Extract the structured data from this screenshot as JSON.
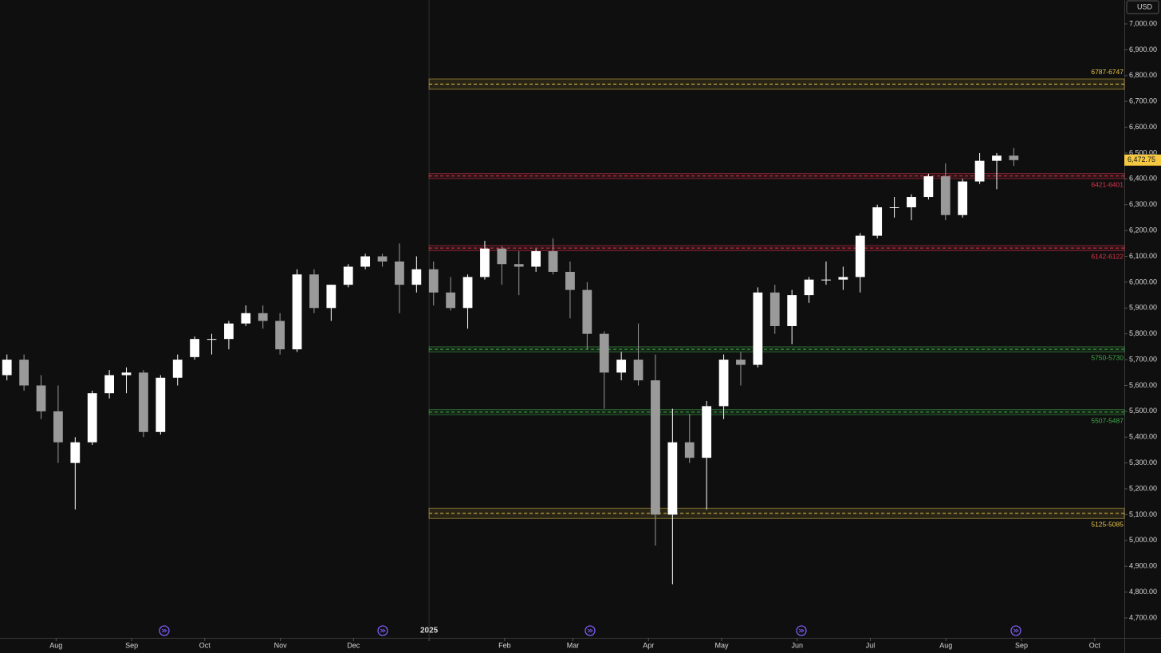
{
  "chart_data": {
    "type": "candlestick",
    "currency": "USD",
    "up_color": "#ffffff",
    "down_color": "#9a9a9a",
    "x": [
      "2024-07-08",
      "2024-07-15",
      "2024-07-22",
      "2024-07-29",
      "2024-08-05",
      "2024-08-12",
      "2024-08-19",
      "2024-08-26",
      "2024-09-02",
      "2024-09-09",
      "2024-09-16",
      "2024-09-23",
      "2024-09-30",
      "2024-10-07",
      "2024-10-14",
      "2024-10-21",
      "2024-10-28",
      "2024-11-04",
      "2024-11-11",
      "2024-11-18",
      "2024-11-25",
      "2024-12-02",
      "2024-12-09",
      "2024-12-16",
      "2024-12-23",
      "2024-12-30",
      "2025-01-06",
      "2025-01-13",
      "2025-01-20",
      "2025-01-27",
      "2025-02-03",
      "2025-02-10",
      "2025-02-17",
      "2025-02-24",
      "2025-03-03",
      "2025-03-10",
      "2025-03-17",
      "2025-03-24",
      "2025-03-31",
      "2025-04-07",
      "2025-04-14",
      "2025-04-21",
      "2025-04-28",
      "2025-05-05",
      "2025-05-12",
      "2025-05-19",
      "2025-05-26",
      "2025-06-02",
      "2025-06-09",
      "2025-06-16",
      "2025-06-23",
      "2025-06-30",
      "2025-07-07",
      "2025-07-14",
      "2025-07-21",
      "2025-07-28",
      "2025-08-04",
      "2025-08-11",
      "2025-08-18",
      "2025-08-25"
    ],
    "ohlc": [
      [
        5640,
        5720,
        5620,
        5700
      ],
      [
        5700,
        5720,
        5580,
        5600
      ],
      [
        5600,
        5640,
        5470,
        5500
      ],
      [
        5500,
        5600,
        5300,
        5380
      ],
      [
        5300,
        5400,
        5120,
        5380
      ],
      [
        5380,
        5580,
        5370,
        5570
      ],
      [
        5570,
        5660,
        5550,
        5640
      ],
      [
        5640,
        5670,
        5570,
        5650
      ],
      [
        5650,
        5660,
        5400,
        5420
      ],
      [
        5420,
        5640,
        5410,
        5630
      ],
      [
        5630,
        5720,
        5600,
        5700
      ],
      [
        5710,
        5790,
        5700,
        5780
      ],
      [
        5780,
        5800,
        5720,
        5780
      ],
      [
        5780,
        5850,
        5740,
        5840
      ],
      [
        5840,
        5910,
        5830,
        5880
      ],
      [
        5880,
        5910,
        5820,
        5850
      ],
      [
        5850,
        5880,
        5720,
        5740
      ],
      [
        5740,
        6050,
        5730,
        6030
      ],
      [
        6030,
        6050,
        5880,
        5900
      ],
      [
        5900,
        5990,
        5850,
        5990
      ],
      [
        5990,
        6070,
        5980,
        6060
      ],
      [
        6060,
        6110,
        6050,
        6100
      ],
      [
        6100,
        6110,
        6060,
        6080
      ],
      [
        6080,
        6150,
        5880,
        5990
      ],
      [
        5990,
        6100,
        5960,
        6050
      ],
      [
        6050,
        6080,
        5910,
        5960
      ],
      [
        5960,
        6020,
        5890,
        5900
      ],
      [
        5900,
        6030,
        5820,
        6020
      ],
      [
        6020,
        6160,
        6010,
        6130
      ],
      [
        6130,
        6140,
        5990,
        6070
      ],
      [
        6070,
        6120,
        5950,
        6060
      ],
      [
        6060,
        6130,
        6040,
        6120
      ],
      [
        6120,
        6170,
        6030,
        6040
      ],
      [
        6040,
        6080,
        5860,
        5970
      ],
      [
        5970,
        6000,
        5740,
        5800
      ],
      [
        5800,
        5810,
        5510,
        5650
      ],
      [
        5650,
        5730,
        5620,
        5700
      ],
      [
        5700,
        5840,
        5600,
        5620
      ],
      [
        5620,
        5720,
        4980,
        5100
      ],
      [
        5100,
        5510,
        4830,
        5380
      ],
      [
        5380,
        5490,
        5300,
        5320
      ],
      [
        5320,
        5540,
        5120,
        5520
      ],
      [
        5520,
        5720,
        5470,
        5700
      ],
      [
        5700,
        5730,
        5600,
        5680
      ],
      [
        5680,
        5980,
        5670,
        5960
      ],
      [
        5960,
        5990,
        5800,
        5830
      ],
      [
        5830,
        5970,
        5760,
        5950
      ],
      [
        5950,
        6020,
        5920,
        6010
      ],
      [
        6010,
        6080,
        5990,
        6010
      ],
      [
        6010,
        6060,
        5970,
        6020
      ],
      [
        6020,
        6190,
        5960,
        6180
      ],
      [
        6180,
        6300,
        6170,
        6290
      ],
      [
        6290,
        6330,
        6250,
        6290
      ],
      [
        6290,
        6340,
        6240,
        6330
      ],
      [
        6330,
        6420,
        6320,
        6410
      ],
      [
        6410,
        6460,
        6240,
        6260
      ],
      [
        6260,
        6400,
        6250,
        6390
      ],
      [
        6390,
        6500,
        6380,
        6470
      ],
      [
        6470,
        6500,
        6360,
        6490
      ],
      [
        6490,
        6520,
        6450,
        6472.75
      ]
    ],
    "last_price": {
      "value": 6472.75,
      "label": "6,472.75"
    },
    "zones": [
      {
        "label": "6787-6747",
        "high": 6787,
        "low": 6747,
        "color": "#e6c44a"
      },
      {
        "label": "6421-6401",
        "high": 6421,
        "low": 6401,
        "color": "#e0334a"
      },
      {
        "label": "6142-6122",
        "high": 6142,
        "low": 6122,
        "color": "#e0334a"
      },
      {
        "label": "5750-5730",
        "high": 5750,
        "low": 5730,
        "color": "#3fae4a"
      },
      {
        "label": "5507-5487",
        "high": 5507,
        "low": 5487,
        "color": "#3fae4a"
      },
      {
        "label": "5125-5085",
        "high": 5125,
        "low": 5085,
        "color": "#e6c44a"
      }
    ],
    "zone_start": "2025-01-01",
    "xlim": [
      "2024-07-09",
      "2025-10-23"
    ],
    "xticks": [
      {
        "value": "2024-08-01",
        "label": "Aug"
      },
      {
        "value": "2024-09-01",
        "label": "Sep"
      },
      {
        "value": "2024-10-01",
        "label": "Oct"
      },
      {
        "value": "2024-11-01",
        "label": "Nov"
      },
      {
        "value": "2024-12-01",
        "label": "Dec"
      },
      {
        "value": "2025-01-01",
        "label": "2025"
      },
      {
        "value": "2025-02-01",
        "label": "Feb"
      },
      {
        "value": "2025-03-01",
        "label": "Mar"
      },
      {
        "value": "2025-04-01",
        "label": "Apr"
      },
      {
        "value": "2025-05-01",
        "label": "May"
      },
      {
        "value": "2025-06-01",
        "label": "Jun"
      },
      {
        "value": "2025-07-01",
        "label": "Jul"
      },
      {
        "value": "2025-08-01",
        "label": "Aug"
      },
      {
        "value": "2025-09-01",
        "label": "Sep"
      },
      {
        "value": "2025-10-01",
        "label": "Oct"
      }
    ],
    "ylim": [
      4700,
      7000
    ],
    "yticks": [
      {
        "value": 4700,
        "label": "4,700.00"
      },
      {
        "value": 4800,
        "label": "4,800.00"
      },
      {
        "value": 4900,
        "label": "4,900.00"
      },
      {
        "value": 5000,
        "label": "5,000.00"
      },
      {
        "value": 5100,
        "label": "5,100.00"
      },
      {
        "value": 5200,
        "label": "5,200.00"
      },
      {
        "value": 5300,
        "label": "5,300.00"
      },
      {
        "value": 5400,
        "label": "5,400.00"
      },
      {
        "value": 5500,
        "label": "5,500.00"
      },
      {
        "value": 5600,
        "label": "5,600.00"
      },
      {
        "value": 5700,
        "label": "5,700.00"
      },
      {
        "value": 5800,
        "label": "5,800.00"
      },
      {
        "value": 5900,
        "label": "5,900.00"
      },
      {
        "value": 6000,
        "label": "6,000.00"
      },
      {
        "value": 6100,
        "label": "6,100.00"
      },
      {
        "value": 6200,
        "label": "6,200.00"
      },
      {
        "value": 6300,
        "label": "6,300.00"
      },
      {
        "value": 6400,
        "label": "6,400.00"
      },
      {
        "value": 6500,
        "label": "6,500.00"
      },
      {
        "value": 6600,
        "label": "6,600.00"
      },
      {
        "value": 6700,
        "label": "6,700.00"
      },
      {
        "value": 6800,
        "label": "6,800.00"
      },
      {
        "value": 6900,
        "label": "6,900.00"
      },
      {
        "value": 7000,
        "label": "7,000.00"
      }
    ]
  }
}
